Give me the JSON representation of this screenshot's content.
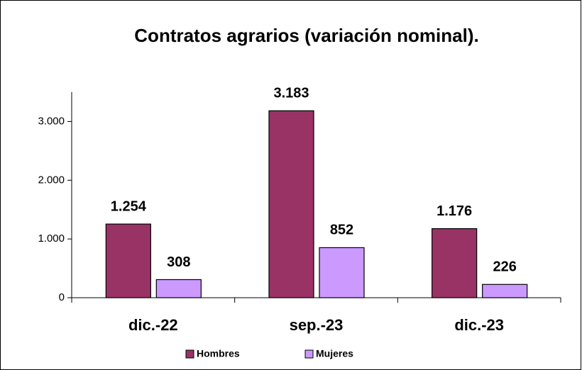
{
  "chart_data": {
    "type": "bar",
    "title": "Contratos agrarios  (variación nominal).",
    "categories": [
      "dic.-22",
      "sep.-23",
      "dic.-23"
    ],
    "series": [
      {
        "name": "Hombres",
        "color": "#993366",
        "values": [
          1254,
          3183,
          1176
        ],
        "value_labels": [
          "1.254",
          "3.183",
          "1.176"
        ]
      },
      {
        "name": "Mujeres",
        "color": "#cc99ff",
        "values": [
          308,
          852,
          226
        ],
        "value_labels": [
          "308",
          "852",
          "226"
        ]
      }
    ],
    "ylim": [
      0,
      3500
    ],
    "yticks": [
      0,
      {
        "value": 1000,
        "label": "1.000"
      },
      {
        "value": 2000,
        "label": "2.000"
      },
      {
        "value": 3000,
        "label": "3.000"
      }
    ],
    "legend": "bottom"
  }
}
